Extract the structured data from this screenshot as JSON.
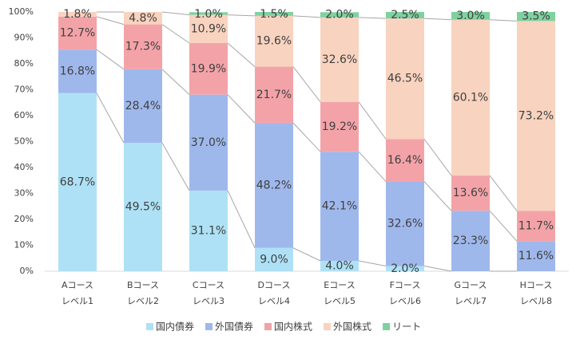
{
  "chart_data": {
    "type": "stacked_bar_100",
    "categories": [
      [
        "Aコース",
        "レベル1"
      ],
      [
        "Bコース",
        "レベル2"
      ],
      [
        "Cコース",
        "レベル3"
      ],
      [
        "Dコース",
        "レベル4"
      ],
      [
        "Eコース",
        "レベル5"
      ],
      [
        "Fコース",
        "レベル6"
      ],
      [
        "Gコース",
        "レベル7"
      ],
      [
        "Hコース",
        "レベル8"
      ]
    ],
    "series": [
      {
        "name": "国内債券",
        "color": "#aee1f5",
        "values": [
          68.7,
          49.5,
          31.1,
          9.0,
          4.0,
          2.0,
          0,
          0
        ],
        "value_labels": [
          "68.7%",
          "49.5%",
          "31.1%",
          "9.0%",
          "4.0%",
          "2.0%",
          null,
          null
        ]
      },
      {
        "name": "外国債券",
        "color": "#9fb8ec",
        "values": [
          16.8,
          28.4,
          37.0,
          48.2,
          42.1,
          32.6,
          23.3,
          11.6
        ],
        "value_labels": [
          "16.8%",
          "28.4%",
          "37.0%",
          "48.2%",
          "42.1%",
          "32.6%",
          "23.3%",
          "11.6%"
        ]
      },
      {
        "name": "国内株式",
        "color": "#f3a3a8",
        "values": [
          12.7,
          17.3,
          19.9,
          21.7,
          19.2,
          16.4,
          13.6,
          11.7
        ],
        "value_labels": [
          "12.7%",
          "17.3%",
          "19.9%",
          "21.7%",
          "19.2%",
          "16.4%",
          "13.6%",
          "11.7%"
        ]
      },
      {
        "name": "外国株式",
        "color": "#f8d3bf",
        "values": [
          1.8,
          4.8,
          10.9,
          19.6,
          32.6,
          46.5,
          60.1,
          73.2
        ],
        "value_labels": [
          "1.8%",
          "4.8%",
          "10.9%",
          "19.6%",
          "32.6%",
          "46.5%",
          "60.1%",
          "73.2%"
        ]
      },
      {
        "name": "リート",
        "color": "#7fd1a0",
        "values": [
          0,
          0,
          1.0,
          1.5,
          2.0,
          2.5,
          3.0,
          3.5
        ],
        "value_labels": [
          null,
          null,
          "1.0%",
          "1.5%",
          "2.0%",
          "2.5%",
          "3.0%",
          "3.5%"
        ]
      }
    ],
    "ylim": [
      0,
      100
    ],
    "yticks": [
      {
        "value": 0,
        "label": "0%"
      },
      {
        "value": 10,
        "label": "10%"
      },
      {
        "value": 20,
        "label": "20%"
      },
      {
        "value": 30,
        "label": "30%"
      },
      {
        "value": 40,
        "label": "40%"
      },
      {
        "value": 50,
        "label": "50%"
      },
      {
        "value": 60,
        "label": "60%"
      },
      {
        "value": 70,
        "label": "70%"
      },
      {
        "value": 80,
        "label": "80%"
      },
      {
        "value": 90,
        "label": "90%"
      },
      {
        "value": 100,
        "label": "100%"
      }
    ],
    "legend": "bottom"
  }
}
